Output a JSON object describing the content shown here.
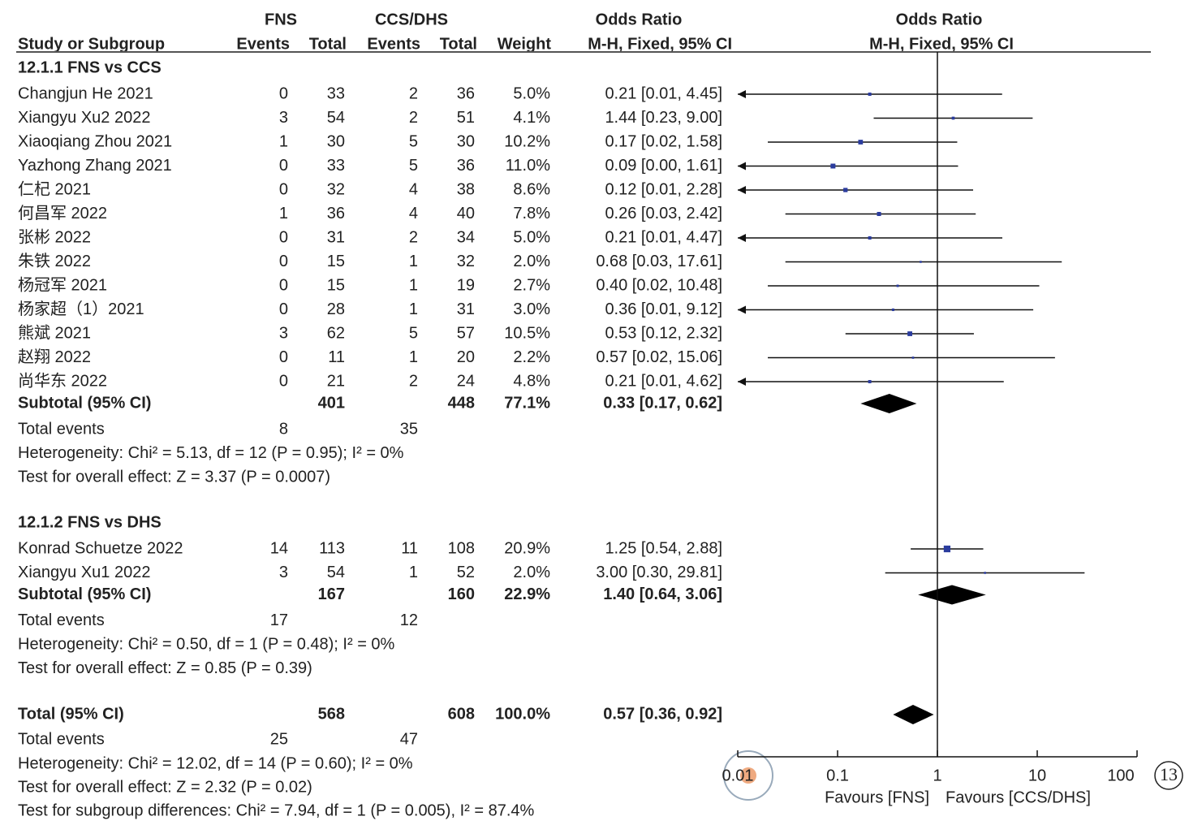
{
  "chart_data": {
    "type": "forest",
    "headers": {
      "fns": "FNS",
      "ccs": "CCS/DHS",
      "or_table": "Odds Ratio",
      "or_plot": "Odds Ratio",
      "study": "Study or Subgroup",
      "events1": "Events",
      "total1": "Total",
      "events2": "Events",
      "total2": "Total",
      "weight": "Weight",
      "method_table": "M-H, Fixed, 95% CI",
      "method_plot": "M-H, Fixed, 95% CI"
    },
    "groups": [
      {
        "title": "12.1.1 FNS vs CCS",
        "studies": [
          {
            "name": "Changjun He 2021",
            "e1": 0,
            "n1": 33,
            "e2": 2,
            "n2": 36,
            "weight": 5.0,
            "weight_label": "5.0%",
            "or": 0.21,
            "lo": 0.01,
            "hi": 4.45,
            "ci_label": "0.21 [0.01, 4.45]"
          },
          {
            "name": "Xiangyu Xu2 2022",
            "e1": 3,
            "n1": 54,
            "e2": 2,
            "n2": 51,
            "weight": 4.1,
            "weight_label": "4.1%",
            "or": 1.44,
            "lo": 0.23,
            "hi": 9.0,
            "ci_label": "1.44 [0.23, 9.00]"
          },
          {
            "name": "Xiaoqiang Zhou 2021",
            "e1": 1,
            "n1": 30,
            "e2": 5,
            "n2": 30,
            "weight": 10.2,
            "weight_label": "10.2%",
            "or": 0.17,
            "lo": 0.02,
            "hi": 1.58,
            "ci_label": "0.17 [0.02, 1.58]"
          },
          {
            "name": "Yazhong Zhang 2021",
            "e1": 0,
            "n1": 33,
            "e2": 5,
            "n2": 36,
            "weight": 11.0,
            "weight_label": "11.0%",
            "or": 0.09,
            "lo": 0.0,
            "hi": 1.61,
            "ci_label": "0.09 [0.00, 1.61]"
          },
          {
            "name": "仁杞 2021",
            "e1": 0,
            "n1": 32,
            "e2": 4,
            "n2": 38,
            "weight": 8.6,
            "weight_label": "8.6%",
            "or": 0.12,
            "lo": 0.01,
            "hi": 2.28,
            "ci_label": "0.12 [0.01, 2.28]"
          },
          {
            "name": "何昌军 2022",
            "e1": 1,
            "n1": 36,
            "e2": 4,
            "n2": 40,
            "weight": 7.8,
            "weight_label": "7.8%",
            "or": 0.26,
            "lo": 0.03,
            "hi": 2.42,
            "ci_label": "0.26 [0.03, 2.42]"
          },
          {
            "name": "张彬 2022",
            "e1": 0,
            "n1": 31,
            "e2": 2,
            "n2": 34,
            "weight": 5.0,
            "weight_label": "5.0%",
            "or": 0.21,
            "lo": 0.01,
            "hi": 4.47,
            "ci_label": "0.21 [0.01, 4.47]"
          },
          {
            "name": "朱铁 2022",
            "e1": 0,
            "n1": 15,
            "e2": 1,
            "n2": 32,
            "weight": 2.0,
            "weight_label": "2.0%",
            "or": 0.68,
            "lo": 0.03,
            "hi": 17.61,
            "ci_label": "0.68 [0.03, 17.61]"
          },
          {
            "name": "杨冠军 2021",
            "e1": 0,
            "n1": 15,
            "e2": 1,
            "n2": 19,
            "weight": 2.7,
            "weight_label": "2.7%",
            "or": 0.4,
            "lo": 0.02,
            "hi": 10.48,
            "ci_label": "0.40 [0.02, 10.48]"
          },
          {
            "name": "杨家超（1）2021",
            "e1": 0,
            "n1": 28,
            "e2": 1,
            "n2": 31,
            "weight": 3.0,
            "weight_label": "3.0%",
            "or": 0.36,
            "lo": 0.01,
            "hi": 9.12,
            "ci_label": "0.36 [0.01, 9.12]"
          },
          {
            "name": "熊斌 2021",
            "e1": 3,
            "n1": 62,
            "e2": 5,
            "n2": 57,
            "weight": 10.5,
            "weight_label": "10.5%",
            "or": 0.53,
            "lo": 0.12,
            "hi": 2.32,
            "ci_label": "0.53 [0.12, 2.32]"
          },
          {
            "name": "赵翔 2022",
            "e1": 0,
            "n1": 11,
            "e2": 1,
            "n2": 20,
            "weight": 2.2,
            "weight_label": "2.2%",
            "or": 0.57,
            "lo": 0.02,
            "hi": 15.06,
            "ci_label": "0.57 [0.02, 15.06]"
          },
          {
            "name": "尚华东 2022",
            "e1": 0,
            "n1": 21,
            "e2": 2,
            "n2": 24,
            "weight": 4.8,
            "weight_label": "4.8%",
            "or": 0.21,
            "lo": 0.01,
            "hi": 4.62,
            "ci_label": "0.21 [0.01, 4.62]"
          }
        ],
        "subtotal": {
          "name": "Subtotal (95% CI)",
          "n1": 401,
          "n2": 448,
          "weight": 77.1,
          "weight_label": "77.1%",
          "or": 0.33,
          "lo": 0.17,
          "hi": 0.62,
          "ci_label": "0.33 [0.17, 0.62]"
        },
        "total_events": {
          "name": "Total events",
          "e1": 8,
          "e2": 35
        },
        "heterogeneity": "Heterogeneity: Chi² = 5.13, df = 12 (P = 0.95); I² = 0%",
        "overall": "Test for overall effect: Z = 3.37 (P = 0.0007)"
      },
      {
        "title": "12.1.2 FNS vs DHS",
        "studies": [
          {
            "name": "Konrad Schuetze 2022",
            "e1": 14,
            "n1": 113,
            "e2": 11,
            "n2": 108,
            "weight": 20.9,
            "weight_label": "20.9%",
            "or": 1.25,
            "lo": 0.54,
            "hi": 2.88,
            "ci_label": "1.25 [0.54, 2.88]"
          },
          {
            "name": "Xiangyu Xu1 2022",
            "e1": 3,
            "n1": 54,
            "e2": 1,
            "n2": 52,
            "weight": 2.0,
            "weight_label": "2.0%",
            "or": 3.0,
            "lo": 0.3,
            "hi": 29.81,
            "ci_label": "3.00 [0.30, 29.81]"
          }
        ],
        "subtotal": {
          "name": "Subtotal (95% CI)",
          "n1": 167,
          "n2": 160,
          "weight": 22.9,
          "weight_label": "22.9%",
          "or": 1.4,
          "lo": 0.64,
          "hi": 3.06,
          "ci_label": "1.40 [0.64, 3.06]"
        },
        "total_events": {
          "name": "Total events",
          "e1": 17,
          "e2": 12
        },
        "heterogeneity": "Heterogeneity: Chi² = 0.50, df = 1 (P = 0.48); I² = 0%",
        "overall": "Test for overall effect: Z = 0.85 (P = 0.39)"
      }
    ],
    "total": {
      "name": "Total (95% CI)",
      "n1": 568,
      "n2": 608,
      "weight": 100.0,
      "weight_label": "100.0%",
      "or": 0.57,
      "lo": 0.36,
      "hi": 0.92,
      "ci_label": "0.57 [0.36, 0.92]"
    },
    "total_events": {
      "name": "Total events",
      "e1": 25,
      "e2": 47
    },
    "heterogeneity": "Heterogeneity: Chi² = 12.02, df = 14 (P = 0.60); I² = 0%",
    "overall": "Test for overall effect: Z = 2.32 (P = 0.02)",
    "subgroup_diff": "Test for subgroup differences: Chi² = 7.94, df = 1 (P = 0.005), I² = 87.4%",
    "xlim": [
      0.01,
      100
    ],
    "xticks": [
      0.01,
      0.1,
      1,
      10,
      100
    ],
    "log_scale": true,
    "favours_left": "Favours [FNS]",
    "favours_right": "Favours [CCS/DHS]",
    "color": "#2b3c9e",
    "figure_number": "13"
  }
}
